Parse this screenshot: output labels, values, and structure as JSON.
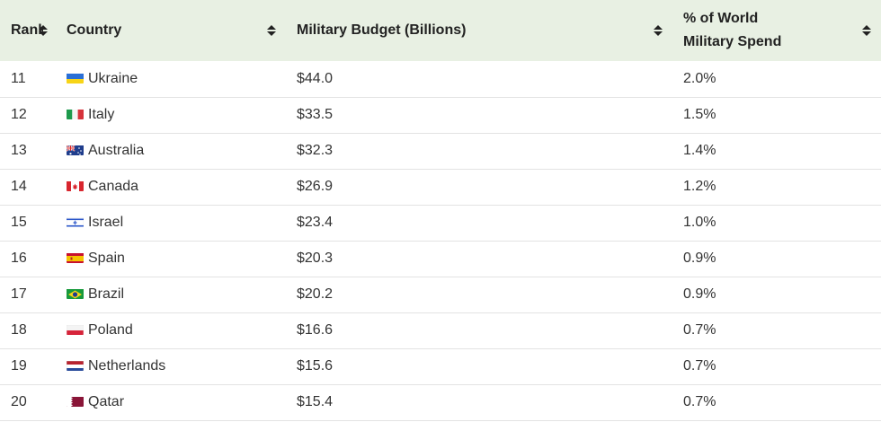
{
  "headers": {
    "rank": "Rank",
    "country": "Country",
    "budget": "Military Budget (Billions)",
    "pct_line1": "% of World",
    "pct_line2": "Military Spend"
  },
  "rows": [
    {
      "rank": "11",
      "country": "Ukraine",
      "budget": "$44.0",
      "pct": "2.0%",
      "flag": "ukraine-flag-icon"
    },
    {
      "rank": "12",
      "country": "Italy",
      "budget": "$33.5",
      "pct": "1.5%",
      "flag": "italy-flag-icon"
    },
    {
      "rank": "13",
      "country": "Australia",
      "budget": "$32.3",
      "pct": "1.4%",
      "flag": "australia-flag-icon"
    },
    {
      "rank": "14",
      "country": "Canada",
      "budget": "$26.9",
      "pct": "1.2%",
      "flag": "canada-flag-icon"
    },
    {
      "rank": "15",
      "country": "Israel",
      "budget": "$23.4",
      "pct": "1.0%",
      "flag": "israel-flag-icon"
    },
    {
      "rank": "16",
      "country": "Spain",
      "budget": "$20.3",
      "pct": "0.9%",
      "flag": "spain-flag-icon"
    },
    {
      "rank": "17",
      "country": "Brazil",
      "budget": "$20.2",
      "pct": "0.9%",
      "flag": "brazil-flag-icon"
    },
    {
      "rank": "18",
      "country": "Poland",
      "budget": "$16.6",
      "pct": "0.7%",
      "flag": "poland-flag-icon"
    },
    {
      "rank": "19",
      "country": "Netherlands",
      "budget": "$15.6",
      "pct": "0.7%",
      "flag": "netherlands-flag-icon"
    },
    {
      "rank": "20",
      "country": "Qatar",
      "budget": "$15.4",
      "pct": "0.7%",
      "flag": "qatar-flag-icon"
    }
  ],
  "colors": {
    "header_bg": "#e8f0e3",
    "row_border": "#e3e3e3"
  }
}
